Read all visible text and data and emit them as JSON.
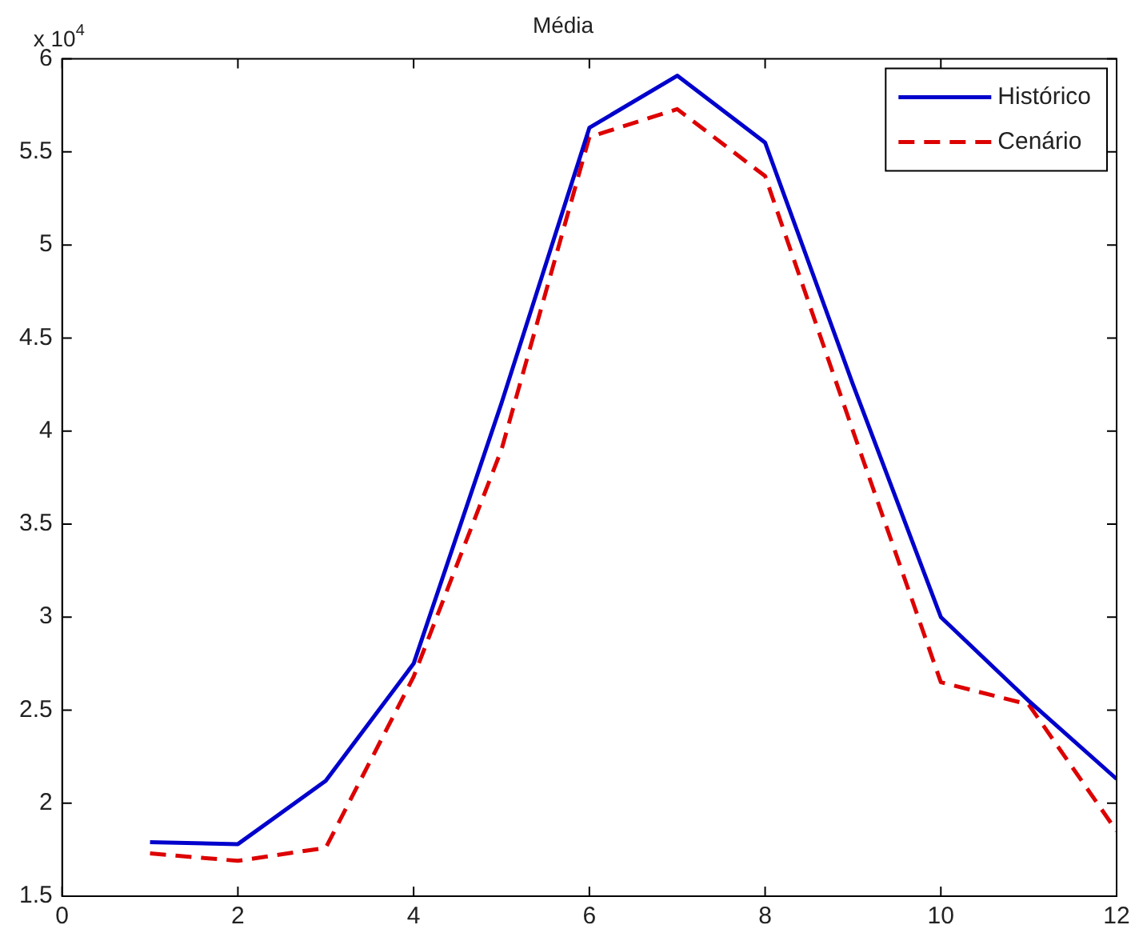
{
  "chart_data": {
    "type": "line",
    "title": "Média",
    "annotations": [
      "x 10$^{4}$"
    ],
    "x": [
      1,
      2,
      3,
      4,
      5,
      6,
      7,
      8,
      9,
      10,
      11,
      12
    ],
    "series": [
      {
        "name": "Histórico",
        "color": "#0000cc",
        "line_style": "solid",
        "values": [
          1.79,
          1.78,
          2.12,
          2.75,
          4.15,
          5.63,
          5.91,
          5.55,
          4.25,
          3.0,
          2.55,
          2.13
        ]
      },
      {
        "name": "Cenário",
        "color": "#dd0000",
        "line_style": "dashed",
        "values": [
          1.73,
          1.69,
          1.76,
          2.68,
          3.9,
          5.58,
          5.73,
          5.37,
          4.0,
          2.65,
          2.53,
          1.85
        ]
      }
    ],
    "xlim": [
      0,
      12
    ],
    "xticks": [
      0,
      2,
      4,
      6,
      8,
      10,
      12
    ],
    "ylim": [
      1.5,
      6
    ],
    "yticks": [
      1.5,
      2,
      2.5,
      3,
      3.5,
      4,
      4.5,
      5,
      5.5,
      6
    ],
    "grid": false,
    "legend": "top right",
    "marker": "none"
  }
}
